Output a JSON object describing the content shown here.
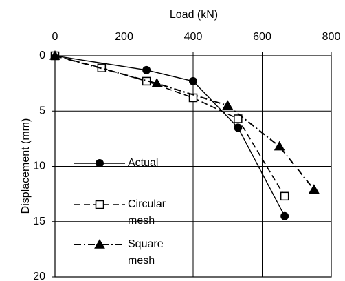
{
  "chart_data": {
    "type": "line",
    "title": "",
    "xlabel": "Load (kN)",
    "ylabel": "Displacement (mm)",
    "x_axis_position": "top",
    "y_axis_inverted": true,
    "xlim": [
      0,
      800
    ],
    "ylim": [
      0,
      20
    ],
    "x_ticks": [
      0,
      200,
      400,
      600,
      800
    ],
    "y_ticks": [
      0,
      5,
      10,
      15,
      20
    ],
    "grid": true,
    "legend_position": "lower-left",
    "series": [
      {
        "name": "Actual",
        "marker": "filled-circle",
        "line_style": "solid",
        "color": "#000000",
        "x": [
          0,
          265,
          400,
          530,
          665
        ],
        "y": [
          0,
          1.3,
          2.3,
          6.5,
          14.5
        ]
      },
      {
        "name": "Circular mesh",
        "marker": "open-square",
        "line_style": "dashed",
        "color": "#000000",
        "x": [
          0,
          135,
          265,
          400,
          530,
          665
        ],
        "y": [
          0,
          1.1,
          2.3,
          3.8,
          5.7,
          12.7
        ]
      },
      {
        "name": "Square mesh",
        "marker": "filled-triangle",
        "line_style": "dash-dot",
        "color": "#000000",
        "x": [
          0,
          295,
          500,
          650,
          750
        ],
        "y": [
          0,
          2.5,
          4.5,
          8.2,
          12.1
        ]
      }
    ],
    "legend": [
      {
        "lines": [
          "Actual"
        ]
      },
      {
        "lines": [
          "Circular",
          "mesh"
        ]
      },
      {
        "lines": [
          "Square",
          "mesh"
        ]
      }
    ]
  }
}
